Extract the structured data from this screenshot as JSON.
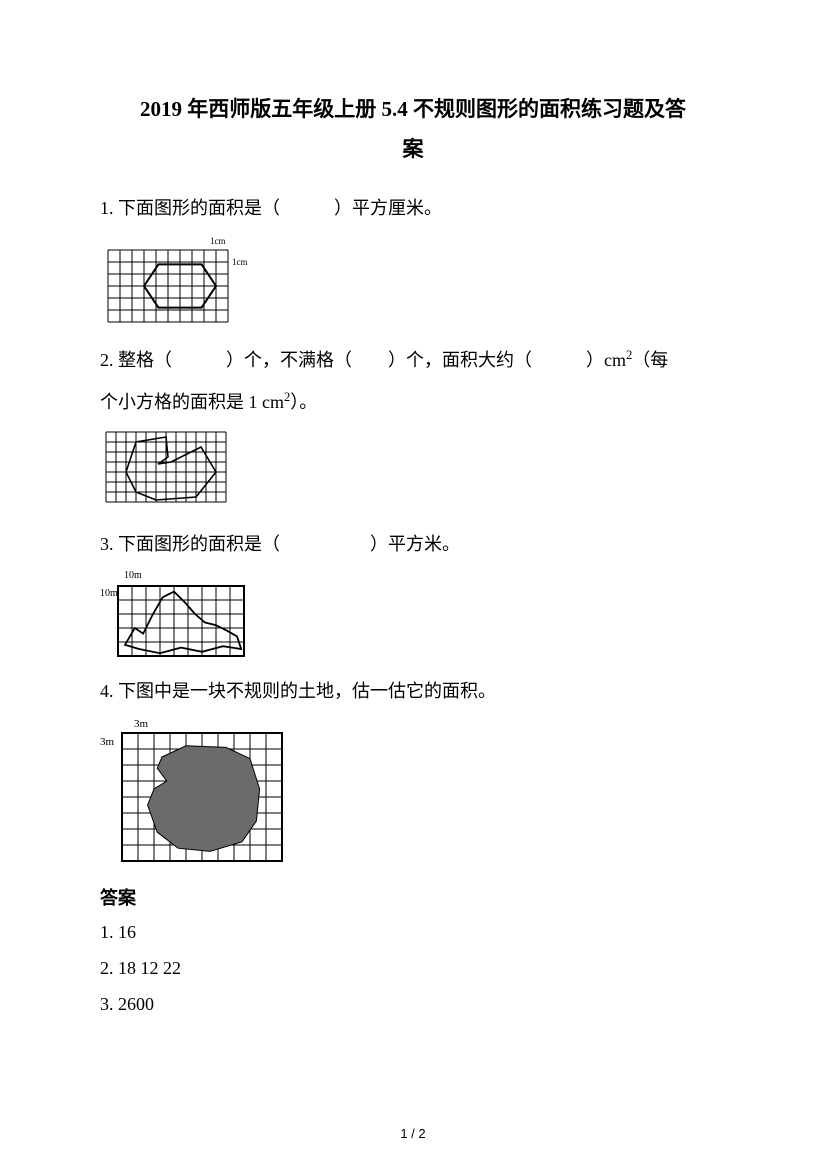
{
  "title_line1": "2019 年西师版五年级上册 5.4 不规则图形的面积练习题及答",
  "title_line2": "案",
  "q1": {
    "text": "1.  下面图形的面积是（　　　）平方厘米。"
  },
  "q2": {
    "prefix": "2.  整格（　　　）个，不满格（　　）个，面积大约（　　　）cm",
    "sup": "2",
    "mid": "（每",
    "line2_a": "个小方格的面积是 1 cm",
    "line2_sup": "2",
    "line2_b": "）。"
  },
  "q3": {
    "text": "3.  下面图形的面积是（　　　　　）平方米。"
  },
  "q4": {
    "text": "4. 下图中是一块不规则的土地，估一估它的面积。"
  },
  "answers": {
    "heading": "答案",
    "a1": "1.  16",
    "a2": "2.  18   12   22",
    "a3": "3.  2600"
  },
  "fig1": {
    "cols": 10,
    "rows": 6,
    "cell": 12,
    "label_top": "1cm",
    "label_side": "1cm",
    "hex": [
      [
        3,
        3
      ],
      [
        4.2,
        1.2
      ],
      [
        7.8,
        1.2
      ],
      [
        9,
        3
      ],
      [
        7.8,
        4.8
      ],
      [
        4.2,
        4.8
      ]
    ],
    "stroke": "#000000"
  },
  "fig2": {
    "cols": 12,
    "rows": 7,
    "cell": 10,
    "shape": [
      [
        2,
        4
      ],
      [
        3,
        1
      ],
      [
        6,
        0.5
      ],
      [
        6.2,
        2.5
      ],
      [
        5.2,
        3.2
      ],
      [
        6.5,
        3.0
      ],
      [
        9.5,
        1.5
      ],
      [
        11,
        4
      ],
      [
        9,
        6.5
      ],
      [
        5,
        6.8
      ],
      [
        3,
        6
      ],
      [
        2,
        4
      ]
    ],
    "stroke": "#000000"
  },
  "fig3": {
    "cols": 9,
    "rows": 5,
    "cell": 14,
    "label_top": "10m",
    "label_side": "10m",
    "shape": [
      [
        0.5,
        4.2
      ],
      [
        1.2,
        3.0
      ],
      [
        1.8,
        3.4
      ],
      [
        2.5,
        2.0
      ],
      [
        3.2,
        0.8
      ],
      [
        4.0,
        0.4
      ],
      [
        4.8,
        1.2
      ],
      [
        5.5,
        2.0
      ],
      [
        6.2,
        2.6
      ],
      [
        7.0,
        2.8
      ],
      [
        7.8,
        3.2
      ],
      [
        8.5,
        3.6
      ],
      [
        8.8,
        4.5
      ],
      [
        7.5,
        4.3
      ],
      [
        6.0,
        4.7
      ],
      [
        4.5,
        4.4
      ],
      [
        3.0,
        4.8
      ],
      [
        1.5,
        4.5
      ],
      [
        0.5,
        4.2
      ]
    ],
    "stroke": "#000000"
  },
  "fig4": {
    "cols": 10,
    "rows": 8,
    "cell": 16,
    "label_top": "3m",
    "label_side": "3m",
    "shape": [
      [
        2.5,
        1.5
      ],
      [
        4.0,
        0.8
      ],
      [
        6.5,
        0.9
      ],
      [
        8.0,
        1.6
      ],
      [
        8.6,
        3.5
      ],
      [
        8.4,
        5.5
      ],
      [
        7.5,
        6.8
      ],
      [
        5.5,
        7.4
      ],
      [
        3.5,
        7.2
      ],
      [
        2.2,
        6.2
      ],
      [
        1.6,
        4.5
      ],
      [
        2.0,
        3.5
      ],
      [
        2.8,
        3.0
      ],
      [
        2.2,
        2.2
      ],
      [
        2.5,
        1.5
      ]
    ],
    "fill": "#6b6b6b",
    "stroke": "#000000"
  },
  "page": "1 / 2",
  "colors": {
    "text": "#000000",
    "grid": "#000000",
    "bg": "#ffffff"
  }
}
